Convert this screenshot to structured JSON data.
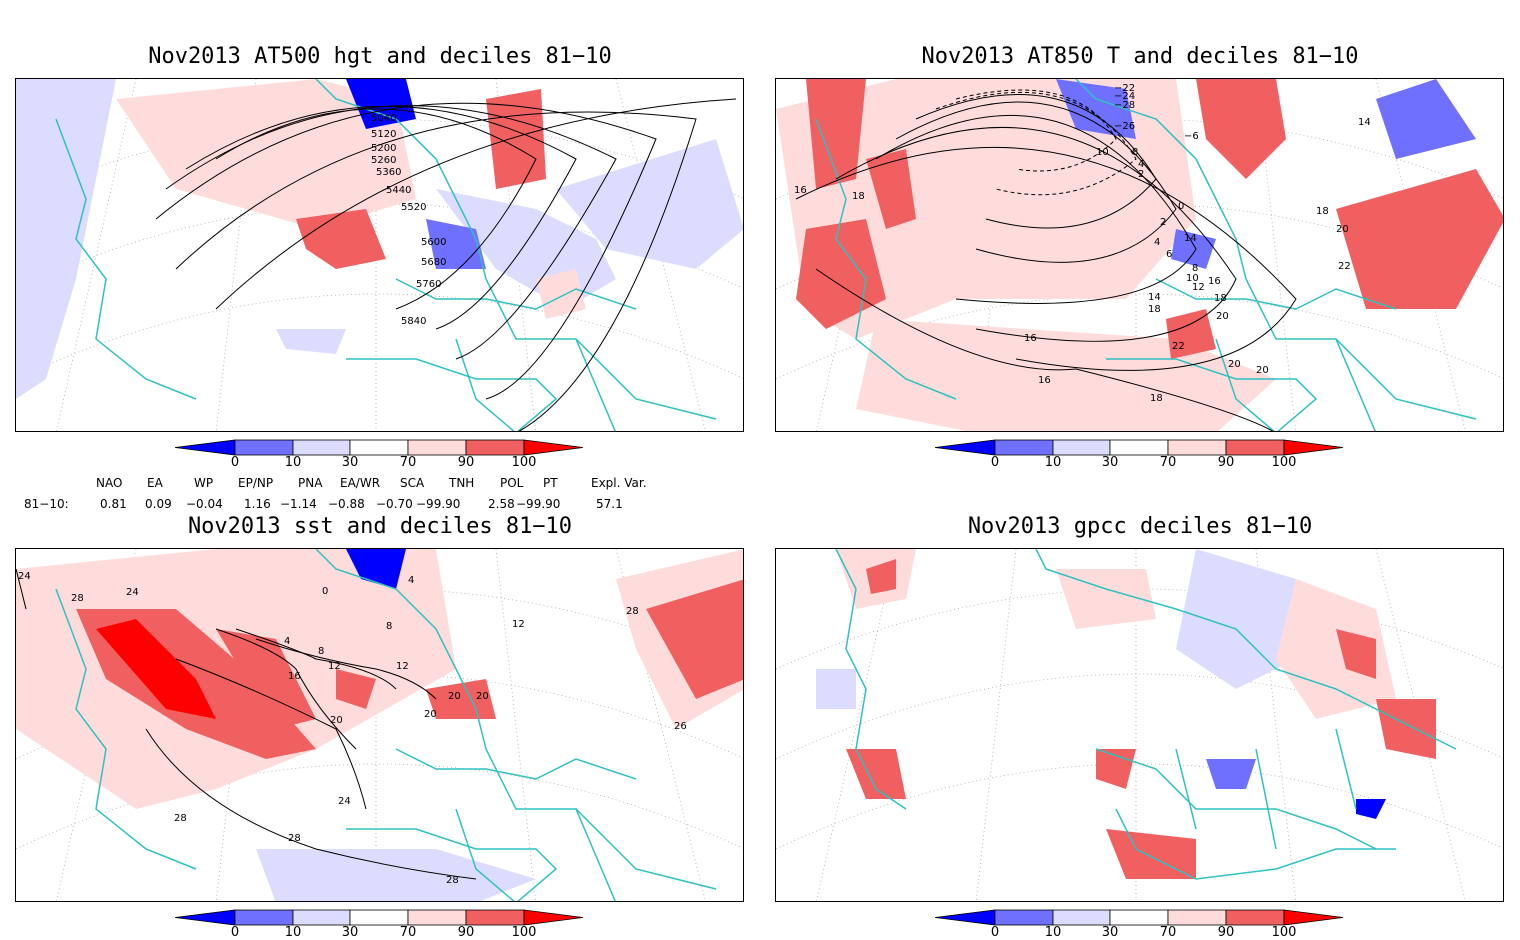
{
  "panels": [
    {
      "title": "Nov2013 AT500 hgt and deciles 81−10",
      "contour_labels": [
        "5040",
        "5120",
        "5200",
        "5260",
        "5360",
        "5440",
        "5520",
        "5600",
        "5680",
        "5760",
        "5840"
      ]
    },
    {
      "title": "Nov2013 AT850 T and deciles 81−10",
      "contour_labels": [
        "−22",
        "−24",
        "−28",
        "−26",
        "14",
        "−6",
        "10",
        "8",
        "4",
        "2",
        "0",
        "2",
        "4",
        "6",
        "8",
        "10",
        "12",
        "14",
        "16",
        "18",
        "20",
        "22",
        "16",
        "18",
        "16",
        "18",
        "16",
        "18",
        "20",
        "22",
        "20",
        "20",
        "18",
        "14"
      ]
    },
    {
      "title": "Nov2013 sst and deciles 81−10",
      "contour_labels": [
        "24",
        "28",
        "24",
        "4",
        "8",
        "12",
        "16",
        "20",
        "24",
        "28",
        "28",
        "28",
        "20",
        "20",
        "12",
        "0",
        "4",
        "8",
        "12",
        "26",
        "28",
        "20"
      ]
    },
    {
      "title": "Nov2013 gpcc deciles 81−10",
      "contour_labels": []
    }
  ],
  "colorbar": {
    "ticks": [
      "0",
      "10",
      "30",
      "70",
      "90",
      "100"
    ],
    "colors": [
      "#0000ff",
      "#7070ff",
      "#dcdcff",
      "#ffffff",
      "#ffdcdc",
      "#f06060",
      "#ff0000"
    ]
  },
  "indices": {
    "headers": [
      "NAO",
      "EA",
      "WP",
      "EP/NP",
      "PNA",
      "EA/WR",
      "SCA",
      "TNH",
      "POL",
      "PT",
      "Expl. Var."
    ],
    "row_label": "81−10:",
    "values": [
      "0.81",
      "0.09",
      "−0.04",
      "1.16",
      "−1.14",
      "−0.88",
      "−0.70",
      "−99.90",
      "2.58",
      "−99.90",
      "57.1"
    ]
  },
  "colors": {
    "coast": "#30c0c0",
    "border": "#000000",
    "grid": "#aaaaaa"
  }
}
